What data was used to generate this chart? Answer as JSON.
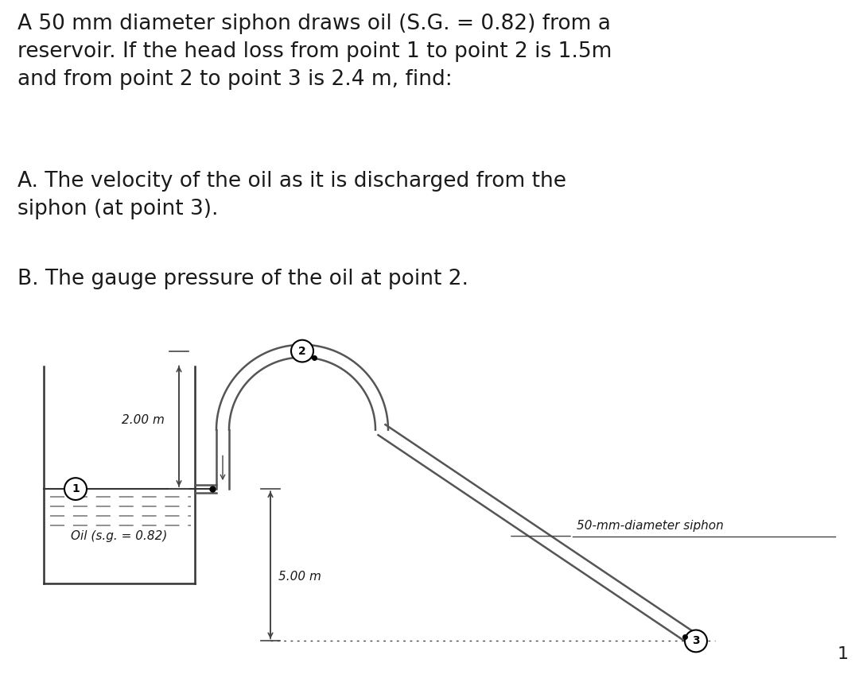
{
  "title_text": "A 50 mm diameter siphon draws oil (S.G. = 0.82) from a\nreservoir. If the head loss from point 1 to point 2 is 1.5m\nand from point 2 to point 3 is 2.4 m, find:",
  "subA": "A. The velocity of the oil as it is discharged from the\nsiphon (at point 3).",
  "subB": "B. The gauge pressure of the oil at point 2.",
  "label_2m": "2.00 m",
  "label_5m": "5.00 m",
  "label_oil": "Oil (s.g. = 0.82)",
  "label_siphon": "50-mm-diameter siphon",
  "bg_color": "#ffffff",
  "text_color": "#1a1a1a",
  "pipe_color": "#555555",
  "tank_color": "#333333",
  "dim_color": "#444444",
  "font_size_main": 19,
  "font_size_label": 11,
  "font_size_dim": 11
}
